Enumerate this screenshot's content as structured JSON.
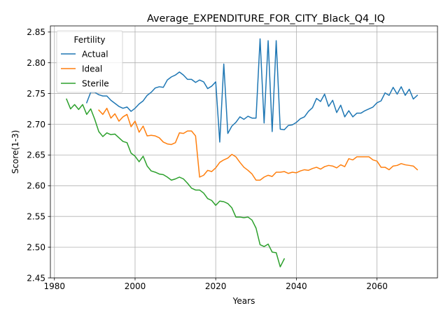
{
  "chart_data": {
    "type": "line",
    "title": "Average_EXPENDITURE_FOR_CITY_Black_Q4_IQ",
    "xlabel": "Years",
    "ylabel": "Score(1-3)",
    "xlim": [
      1979,
      2075
    ],
    "ylim": [
      2.45,
      2.86
    ],
    "xticks": [
      1980,
      2000,
      2020,
      2040,
      2060
    ],
    "yticks": [
      2.45,
      2.5,
      2.55,
      2.6,
      2.65,
      2.7,
      2.75,
      2.8,
      2.85
    ],
    "grid": true,
    "legend": {
      "title": "Fertility",
      "placement": "top-left"
    },
    "series": [
      {
        "name": "Actual",
        "color": "#1f77b4",
        "x": [
          1988,
          1989,
          1990,
          1991,
          1992,
          1993,
          1994,
          1995,
          1996,
          1997,
          1998,
          1999,
          2000,
          2001,
          2002,
          2003,
          2004,
          2005,
          2006,
          2007,
          2008,
          2009,
          2010,
          2011,
          2012,
          2013,
          2014,
          2015,
          2016,
          2017,
          2018,
          2019,
          2020,
          2021,
          2022,
          2023,
          2024,
          2025,
          2026,
          2027,
          2028,
          2029,
          2030,
          2031,
          2032,
          2033,
          2034,
          2035,
          2036,
          2037,
          2038,
          2039,
          2040,
          2041,
          2042,
          2043,
          2044,
          2045,
          2046,
          2047,
          2048,
          2049,
          2050,
          2051,
          2052,
          2053,
          2054,
          2055,
          2056,
          2057,
          2058,
          2059,
          2060,
          2061,
          2062,
          2063,
          2064,
          2065,
          2066,
          2067,
          2068,
          2069,
          2070
        ],
        "y": [
          2.735,
          2.752,
          2.752,
          2.748,
          2.746,
          2.746,
          2.739,
          2.734,
          2.729,
          2.726,
          2.728,
          2.721,
          2.726,
          2.733,
          2.738,
          2.747,
          2.752,
          2.759,
          2.761,
          2.76,
          2.772,
          2.777,
          2.78,
          2.785,
          2.78,
          2.773,
          2.773,
          2.768,
          2.772,
          2.769,
          2.758,
          2.762,
          2.769,
          2.671,
          2.798,
          2.685,
          2.697,
          2.703,
          2.712,
          2.708,
          2.713,
          2.71,
          2.71,
          2.839,
          2.702,
          2.836,
          2.688,
          2.836,
          2.692,
          2.691,
          2.698,
          2.699,
          2.703,
          2.709,
          2.712,
          2.721,
          2.727,
          2.742,
          2.737,
          2.749,
          2.729,
          2.739,
          2.719,
          2.731,
          2.712,
          2.722,
          2.712,
          2.718,
          2.718,
          2.722,
          2.725,
          2.728,
          2.735,
          2.738,
          2.751,
          2.747,
          2.76,
          2.749,
          2.761,
          2.747,
          2.757,
          2.741,
          2.747
        ]
      },
      {
        "name": "Ideal",
        "color": "#ff7f0e",
        "x": [
          1991,
          1992,
          1993,
          1994,
          1995,
          1996,
          1997,
          1998,
          1999,
          2000,
          2001,
          2002,
          2003,
          2004,
          2005,
          2006,
          2007,
          2008,
          2009,
          2010,
          2011,
          2012,
          2013,
          2014,
          2015,
          2016,
          2017,
          2018,
          2019,
          2020,
          2021,
          2022,
          2023,
          2024,
          2025,
          2026,
          2027,
          2028,
          2029,
          2030,
          2031,
          2032,
          2033,
          2034,
          2035,
          2036,
          2037,
          2038,
          2039,
          2040,
          2041,
          2042,
          2043,
          2044,
          2045,
          2046,
          2047,
          2048,
          2049,
          2050,
          2051,
          2052,
          2053,
          2054,
          2055,
          2056,
          2057,
          2058,
          2059,
          2060,
          2061,
          2062,
          2063,
          2064,
          2065,
          2066,
          2067,
          2068,
          2069,
          2070
        ],
        "y": [
          2.723,
          2.716,
          2.726,
          2.71,
          2.717,
          2.705,
          2.712,
          2.716,
          2.696,
          2.705,
          2.687,
          2.697,
          2.681,
          2.682,
          2.681,
          2.678,
          2.671,
          2.668,
          2.667,
          2.67,
          2.686,
          2.685,
          2.689,
          2.689,
          2.681,
          2.614,
          2.617,
          2.625,
          2.623,
          2.629,
          2.638,
          2.642,
          2.645,
          2.651,
          2.647,
          2.638,
          2.63,
          2.625,
          2.619,
          2.609,
          2.609,
          2.614,
          2.617,
          2.615,
          2.622,
          2.622,
          2.623,
          2.62,
          2.622,
          2.621,
          2.624,
          2.626,
          2.625,
          2.628,
          2.63,
          2.627,
          2.631,
          2.633,
          2.632,
          2.629,
          2.634,
          2.631,
          2.644,
          2.642,
          2.647,
          2.647,
          2.647,
          2.647,
          2.642,
          2.64,
          2.63,
          2.63,
          2.626,
          2.632,
          2.633,
          2.636,
          2.634,
          2.633,
          2.632,
          2.626
        ]
      },
      {
        "name": "Sterile",
        "color": "#2ca02c",
        "x": [
          1983,
          1984,
          1985,
          1986,
          1987,
          1988,
          1989,
          1990,
          1991,
          1992,
          1993,
          1994,
          1995,
          1996,
          1997,
          1998,
          1999,
          2000,
          2001,
          2002,
          2003,
          2004,
          2005,
          2006,
          2007,
          2008,
          2009,
          2010,
          2011,
          2012,
          2013,
          2014,
          2015,
          2016,
          2017,
          2018,
          2019,
          2020,
          2021,
          2022,
          2023,
          2024,
          2025,
          2026,
          2027,
          2028,
          2029,
          2030,
          2031,
          2032,
          2033,
          2034,
          2035,
          2036,
          2037
        ],
        "y": [
          2.741,
          2.725,
          2.732,
          2.724,
          2.732,
          2.716,
          2.725,
          2.708,
          2.688,
          2.68,
          2.686,
          2.683,
          2.684,
          2.678,
          2.672,
          2.67,
          2.653,
          2.648,
          2.639,
          2.648,
          2.632,
          2.624,
          2.622,
          2.619,
          2.618,
          2.614,
          2.609,
          2.611,
          2.614,
          2.611,
          2.604,
          2.596,
          2.593,
          2.593,
          2.588,
          2.579,
          2.576,
          2.568,
          2.575,
          2.574,
          2.571,
          2.564,
          2.549,
          2.549,
          2.548,
          2.549,
          2.544,
          2.531,
          2.504,
          2.501,
          2.505,
          2.492,
          2.491,
          2.468,
          2.481
        ]
      }
    ]
  }
}
